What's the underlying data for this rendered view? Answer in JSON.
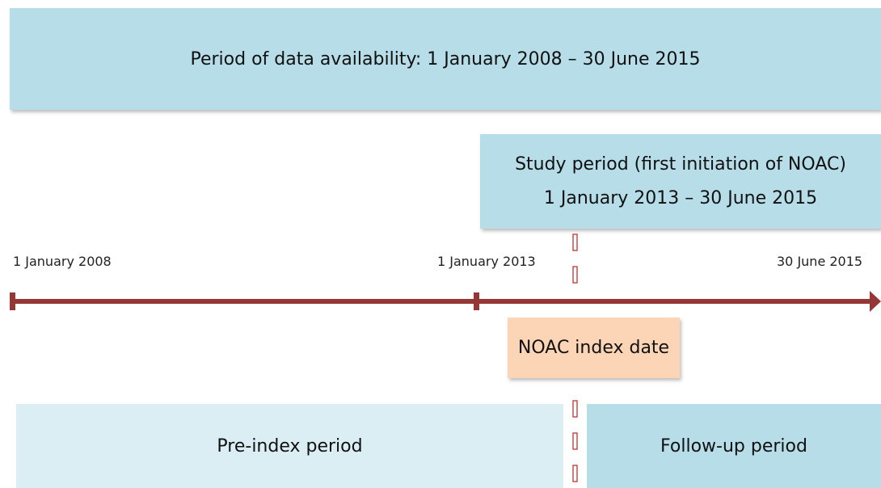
{
  "availability": "Period of data availability: 1 January 2008 – 30 June 2015",
  "study_period": {
    "line1": "Study period (first initiation of NOAC)",
    "line2": "1 January 2013 – 30 June 2015"
  },
  "timeline": {
    "start": "1 January 2008",
    "middle": "1 January 2013",
    "end": "30 June 2015"
  },
  "index_date": "NOAC index date",
  "pre_index": "Pre-index period",
  "follow_up": "Follow-up period"
}
